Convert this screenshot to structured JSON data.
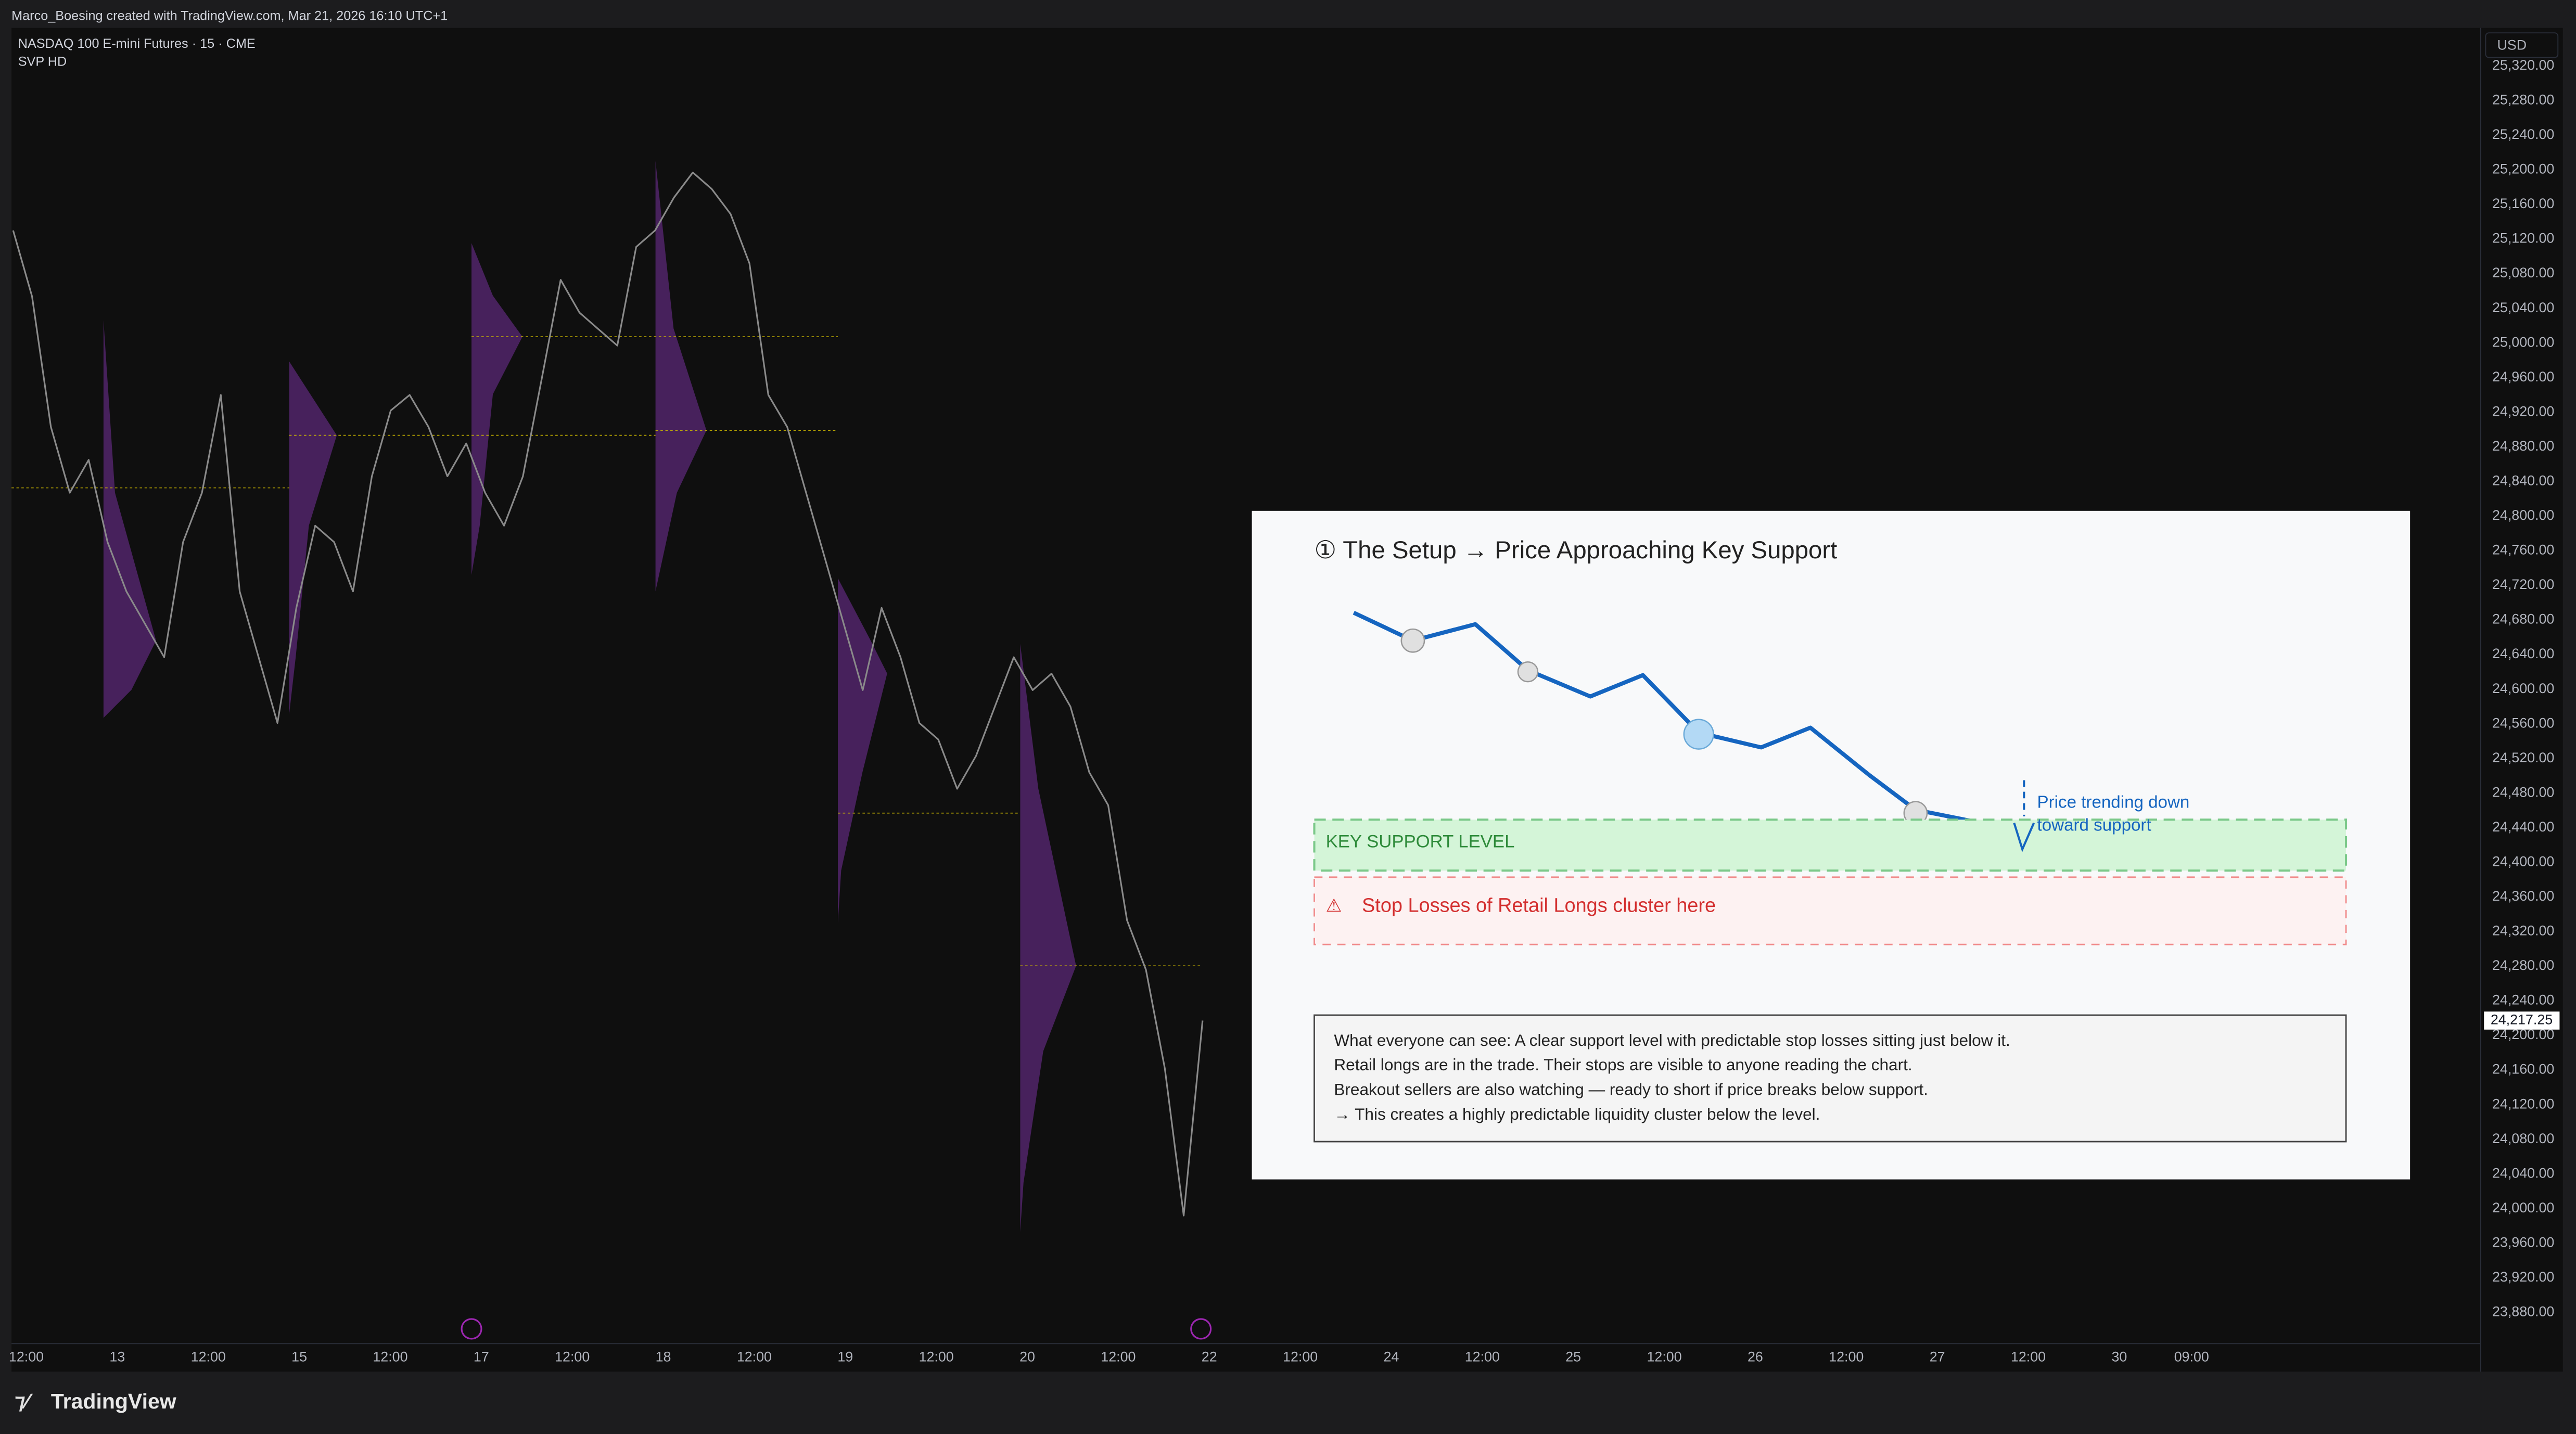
{
  "header": {
    "credit": "Marco_Boesing created with TradingView.com, Mar 21, 2026 16:10 UTC+1",
    "symbol": "NASDAQ 100 E-mini Futures · 15 · CME",
    "indicator": "SVP HD"
  },
  "chart_data": {
    "type": "line",
    "currency": "USD",
    "color": "#8a8a8a",
    "grid": false,
    "x_labels": [
      "12:00",
      "13",
      "12:00",
      "15",
      "12:00",
      "17",
      "12:00",
      "18",
      "12:00",
      "19",
      "12:00",
      "20",
      "12:00",
      "22",
      "12:00",
      "24",
      "12:00",
      "25",
      "12:00",
      "26",
      "12:00",
      "27",
      "12:00",
      "30",
      "09:00"
    ],
    "values": [
      25130,
      25054,
      24903,
      24827,
      24865,
      24770,
      24713,
      24675,
      24637,
      24770,
      24827,
      24940,
      24713,
      24637,
      24561,
      24694,
      24789,
      24770,
      24713,
      24846,
      24922,
      24940,
      24903,
      24846,
      24884,
      24827,
      24789,
      24846,
      24959,
      25073,
      25035,
      25016,
      24997,
      25111,
      25130,
      25168,
      25197,
      25178,
      25149,
      25092,
      24940,
      24903,
      24827,
      24751,
      24675,
      24599,
      24694,
      24637,
      24561,
      24542,
      24485,
      24523,
      24580,
      24637,
      24599,
      24618,
      24580,
      24504,
      24466,
      24333,
      24276,
      24162,
      23992,
      24217.25
    ],
    "ylim": [
      23844,
      25364
    ],
    "yticks": [
      {
        "value": 23880,
        "label": "23,880.00"
      },
      {
        "value": 23920,
        "label": "23,920.00"
      },
      {
        "value": 23960,
        "label": "23,960.00"
      },
      {
        "value": 24000,
        "label": "24,000.00"
      },
      {
        "value": 24040,
        "label": "24,040.00"
      },
      {
        "value": 24080,
        "label": "24,080.00"
      },
      {
        "value": 24120,
        "label": "24,120.00"
      },
      {
        "value": 24160,
        "label": "24,160.00"
      },
      {
        "value": 24200,
        "label": "24,200.00"
      },
      {
        "value": 24240,
        "label": "24,240.00"
      },
      {
        "value": 24280,
        "label": "24,280.00"
      },
      {
        "value": 24320,
        "label": "24,320.00"
      },
      {
        "value": 24360,
        "label": "24,360.00"
      },
      {
        "value": 24400,
        "label": "24,400.00"
      },
      {
        "value": 24440,
        "label": "24,440.00"
      },
      {
        "value": 24480,
        "label": "24,480.00"
      },
      {
        "value": 24520,
        "label": "24,520.00"
      },
      {
        "value": 24560,
        "label": "24,560.00"
      },
      {
        "value": 24600,
        "label": "24,600.00"
      },
      {
        "value": 24640,
        "label": "24,640.00"
      },
      {
        "value": 24680,
        "label": "24,680.00"
      },
      {
        "value": 24720,
        "label": "24,720.00"
      },
      {
        "value": 24760,
        "label": "24,760.00"
      },
      {
        "value": 24800,
        "label": "24,800.00"
      },
      {
        "value": 24840,
        "label": "24,840.00"
      },
      {
        "value": 24880,
        "label": "24,880.00"
      },
      {
        "value": 24920,
        "label": "24,920.00"
      },
      {
        "value": 24960,
        "label": "24,960.00"
      },
      {
        "value": 25000,
        "label": "25,000.00"
      },
      {
        "value": 25040,
        "label": "25,040.00"
      },
      {
        "value": 25080,
        "label": "25,080.00"
      },
      {
        "value": 25120,
        "label": "25,120.00"
      },
      {
        "value": 25160,
        "label": "25,160.00"
      },
      {
        "value": 25200,
        "label": "25,200.00"
      },
      {
        "value": 25240,
        "label": "25,240.00"
      },
      {
        "value": 25280,
        "label": "25,280.00"
      },
      {
        "value": 25320,
        "label": "25,320.00"
      }
    ],
    "last_price": {
      "value": 24217.25,
      "label": "24,217.25"
    }
  },
  "inset": {
    "title": "① The Setup → Price Approaching Key Support",
    "support_label": "KEY SUPPORT LEVEL",
    "warning_icon": "⚠",
    "stops_label": "Stop Losses of Retail Longs cluster here",
    "annotation": [
      "Price trending down",
      "toward support"
    ],
    "notes": [
      "What everyone can see: A clear support level with predictable stop losses sitting just below it.",
      "Retail longs are in the trade. Their stops are visible to anyone reading the chart.",
      "Breakout sellers are also watching — ready to short if price breaks below support.",
      "→ This creates a highly predictable liquidity cluster below the level."
    ]
  },
  "footer": {
    "brand": "TradingView"
  }
}
